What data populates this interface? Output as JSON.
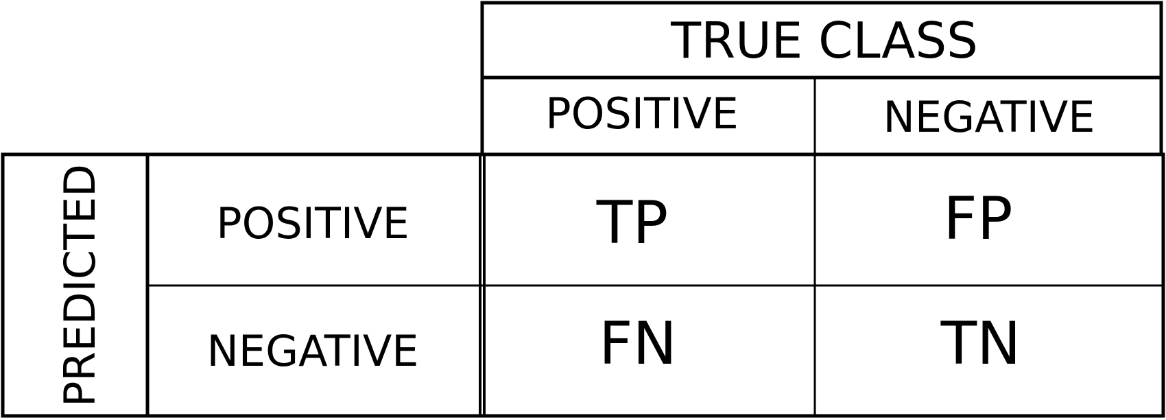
{
  "true_class": {
    "title": "TRUE CLASS",
    "columns": [
      "POSITIVE",
      "NEGATIVE"
    ]
  },
  "predicted": {
    "title": "PREDICTED",
    "rows": [
      "POSITIVE",
      "NEGATIVE"
    ]
  },
  "cells": [
    [
      "TP",
      "FP"
    ],
    [
      "FN",
      "TN"
    ]
  ],
  "colors": {
    "ink": "#000000",
    "background": "#ffffff"
  }
}
